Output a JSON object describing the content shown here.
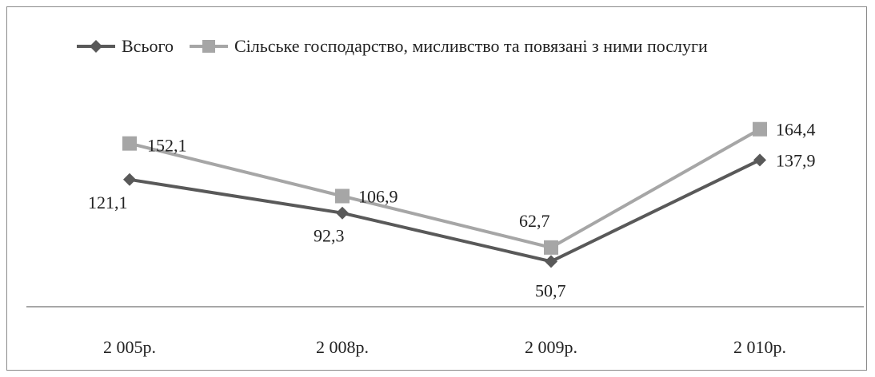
{
  "chart_data": {
    "type": "line",
    "categories": [
      "2 005р.",
      "2 008р.",
      "2 009р.",
      "2 010р."
    ],
    "series": [
      {
        "name": "Всього",
        "values": [
          121.1,
          92.3,
          50.7,
          137.9
        ],
        "labels": [
          "121,1",
          "92,3",
          "50,7",
          "137,9"
        ],
        "color": "#595959",
        "marker": "diamond"
      },
      {
        "name": "Сільське господарство, мисливство та повязані з ними послуги",
        "values": [
          152.1,
          106.9,
          62.7,
          164.4
        ],
        "labels": [
          "152,1",
          "106,9",
          "62,7",
          "164,4"
        ],
        "color": "#a6a6a6",
        "marker": "square"
      }
    ],
    "legend": "top",
    "grid": false
  }
}
